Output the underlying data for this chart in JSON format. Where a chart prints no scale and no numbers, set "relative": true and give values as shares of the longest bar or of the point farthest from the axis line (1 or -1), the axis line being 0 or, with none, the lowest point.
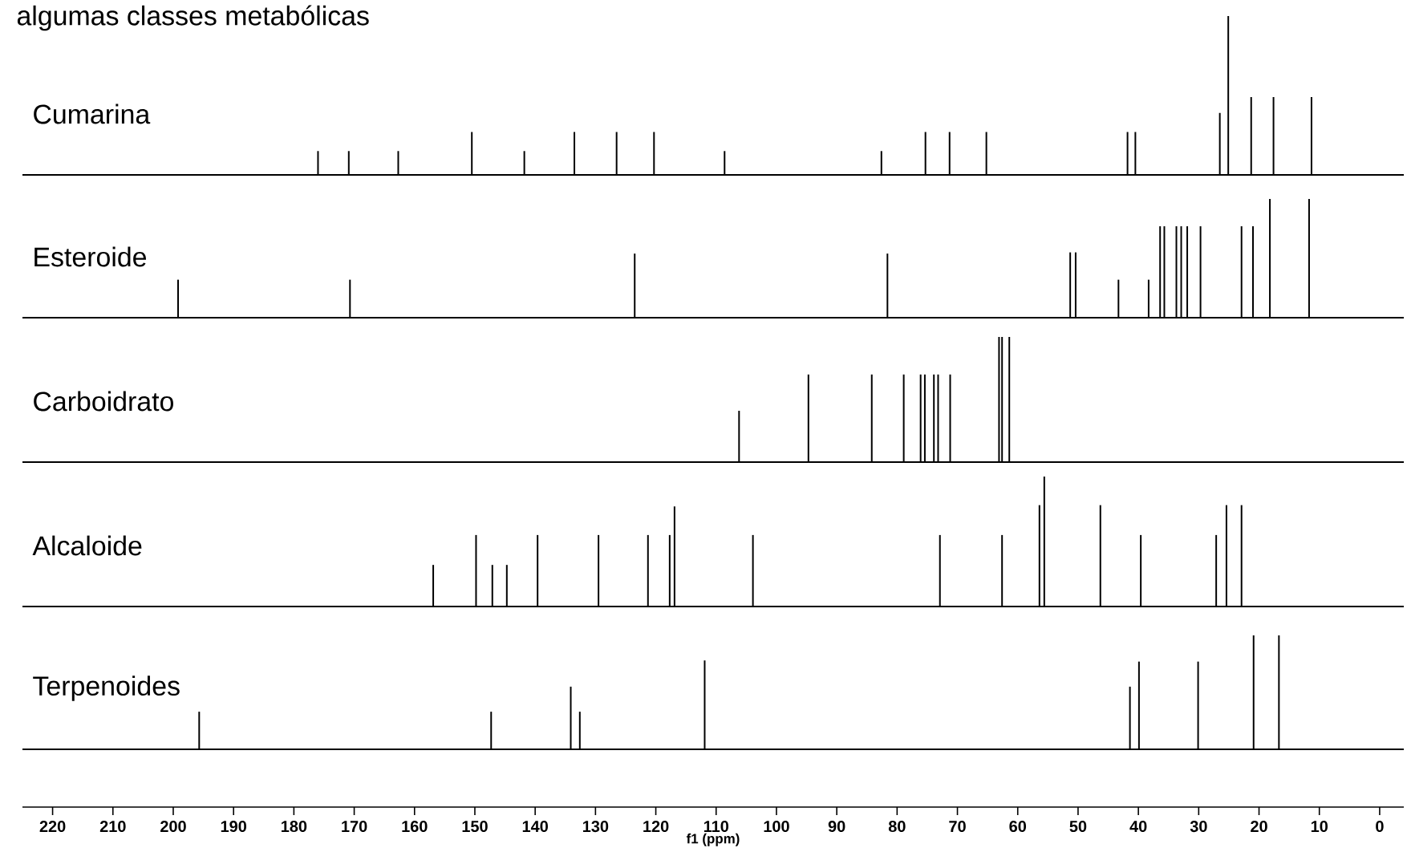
{
  "chart_data": [
    {
      "type": "bar",
      "title": "algumas classes metabólicas",
      "relative": true,
      "xlim": [
        225,
        -4
      ],
      "tick_labels": false,
      "series": [
        {
          "name": "Cumarina",
          "color": "#000000",
          "x": [
            176.0,
            170.9,
            162.7,
            150.5,
            141.8,
            133.5,
            126.5,
            120.3,
            108.6,
            82.6,
            75.3,
            71.3,
            65.2,
            41.8,
            40.5,
            26.5,
            25.1,
            21.3,
            17.6,
            11.3
          ],
          "values": [
            0.15,
            0.15,
            0.15,
            0.27,
            0.15,
            0.27,
            0.27,
            0.27,
            0.15,
            0.15,
            0.27,
            0.27,
            0.27,
            0.27,
            0.27,
            0.39,
            1,
            0.49,
            0.49,
            0.49
          ]
        }
      ]
    },
    {
      "type": "bar",
      "relative": true,
      "xlim": [
        225,
        -4
      ],
      "tick_labels": false,
      "series": [
        {
          "name": "Esteroide",
          "color": "#000000",
          "x": [
            199.2,
            170.7,
            123.5,
            81.6,
            51.3,
            50.4,
            43.3,
            38.3,
            36.4,
            35.7,
            33.7,
            32.9,
            31.9,
            29.7,
            22.9,
            21.0,
            18.2,
            11.7
          ],
          "values": [
            0.32,
            0.32,
            0.54,
            0.54,
            0.55,
            0.55,
            0.32,
            0.32,
            0.77,
            0.77,
            0.77,
            0.77,
            0.77,
            0.77,
            0.77,
            0.77,
            1,
            1
          ]
        }
      ]
    },
    {
      "type": "bar",
      "relative": true,
      "xlim": [
        225,
        -4
      ],
      "tick_labels": false,
      "series": [
        {
          "name": "Carboidrato",
          "color": "#000000",
          "x": [
            106.2,
            94.7,
            84.2,
            78.9,
            76.1,
            75.4,
            73.9,
            73.2,
            71.2,
            63.1,
            62.6,
            61.4
          ],
          "values": [
            0.41,
            0.7,
            0.7,
            0.7,
            0.7,
            0.7,
            0.7,
            0.7,
            0.7,
            1,
            1,
            1
          ]
        }
      ]
    },
    {
      "type": "bar",
      "relative": true,
      "xlim": [
        225,
        -4
      ],
      "tick_labels": false,
      "series": [
        {
          "name": "Alcaloide",
          "color": "#000000",
          "x": [
            156.9,
            149.8,
            147.1,
            144.7,
            139.6,
            129.5,
            121.3,
            117.7,
            116.9,
            103.9,
            72.9,
            62.6,
            56.4,
            55.6,
            46.3,
            39.6,
            27.1,
            25.4,
            22.9
          ],
          "values": [
            0.32,
            0.55,
            0.32,
            0.32,
            0.55,
            0.55,
            0.55,
            0.55,
            0.77,
            0.55,
            0.55,
            0.55,
            0.78,
            1,
            0.78,
            0.55,
            0.55,
            0.78,
            0.78
          ]
        }
      ]
    },
    {
      "type": "bar",
      "relative": true,
      "xlim": [
        225,
        -4
      ],
      "tick_labels": "x",
      "xlabel": "f1 (ppm)",
      "xticks": [
        220,
        210,
        200,
        190,
        180,
        170,
        160,
        150,
        140,
        130,
        120,
        110,
        100,
        90,
        80,
        70,
        60,
        50,
        40,
        30,
        20,
        10,
        0
      ],
      "series": [
        {
          "name": "Terpenoides",
          "color": "#000000",
          "x": [
            195.7,
            147.3,
            134.1,
            132.6,
            111.9,
            41.4,
            39.9,
            30.1,
            20.9,
            16.7
          ],
          "values": [
            0.33,
            0.33,
            0.55,
            0.33,
            0.78,
            0.55,
            0.77,
            0.77,
            1,
            1
          ]
        }
      ]
    }
  ]
}
